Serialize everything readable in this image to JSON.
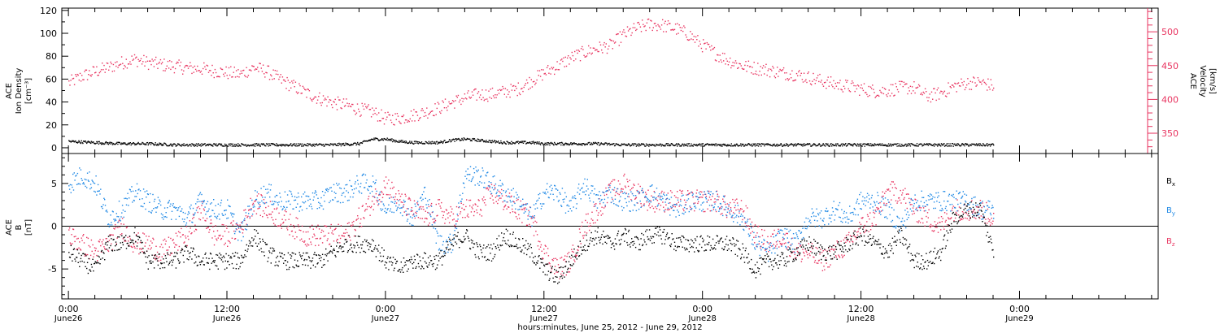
{
  "colors": {
    "axis": "#000000",
    "velocity": "#e8335f",
    "density": "#000000",
    "bx": "#000000",
    "by": "#1e88e5",
    "bz": "#e8335f"
  },
  "x_axis": {
    "title": "hours:minutes, June 25, 2012 - June 29, 2012",
    "range_hours": [
      -0.5,
      82.5
    ],
    "major_ticks": [
      {
        "hours": 0,
        "time": "0:00",
        "date": "June26"
      },
      {
        "hours": 12,
        "time": "12:00",
        "date": "June26"
      },
      {
        "hours": 24,
        "time": "0:00",
        "date": "June27"
      },
      {
        "hours": 36,
        "time": "12:00",
        "date": "June27"
      },
      {
        "hours": 48,
        "time": "0:00",
        "date": "June28"
      },
      {
        "hours": 60,
        "time": "12:00",
        "date": "June28"
      },
      {
        "hours": 72,
        "time": "0:00",
        "date": "June29"
      }
    ],
    "minor_tick_step_hours": 2
  },
  "chart_data": [
    {
      "type": "scatter",
      "panel": "plasma",
      "left_axis": {
        "label_lines": [
          "ACE",
          "Ion Density",
          "[cm⁻³]"
        ],
        "ylim": [
          -5,
          122
        ],
        "ticks": [
          0,
          20,
          40,
          60,
          80,
          100,
          120
        ]
      },
      "right_axis": {
        "label_lines": [
          "ACE",
          "Velocity",
          "[km/s]"
        ],
        "ylim": [
          320,
          535
        ],
        "ticks": [
          350,
          400,
          450,
          500
        ]
      },
      "series": [
        {
          "axis": "right",
          "color_key": "velocity",
          "points_hours": [
            0,
            1,
            2,
            3,
            4,
            5,
            6,
            7,
            8,
            9,
            10,
            11,
            12,
            13,
            14,
            15,
            16,
            17,
            18,
            19,
            20,
            21,
            22,
            23,
            24,
            25,
            26,
            27,
            28,
            29,
            30,
            31,
            32,
            33,
            34,
            35,
            36,
            37,
            38,
            39,
            40,
            41,
            42,
            43,
            44,
            45,
            46,
            47,
            48,
            49,
            50,
            51,
            52,
            53,
            54,
            55,
            56,
            57,
            58,
            59,
            60,
            61,
            62,
            63,
            64,
            65,
            66,
            67,
            68,
            69,
            70
          ],
          "values": [
            425,
            435,
            442,
            448,
            455,
            460,
            455,
            452,
            450,
            447,
            446,
            443,
            440,
            438,
            448,
            442,
            430,
            420,
            410,
            402,
            396,
            392,
            386,
            382,
            372,
            373,
            377,
            382,
            388,
            396,
            403,
            408,
            408,
            412,
            416,
            428,
            440,
            450,
            462,
            470,
            476,
            480,
            496,
            506,
            512,
            510,
            505,
            496,
            480,
            468,
            458,
            450,
            447,
            444,
            440,
            438,
            433,
            428,
            423,
            420,
            416,
            413,
            414,
            418,
            418,
            405,
            410,
            420,
            425,
            426,
            420
          ],
          "spread": 10
        },
        {
          "axis": "left",
          "color_key": "density",
          "points_hours": [
            0,
            2,
            4,
            6,
            8,
            10,
            12,
            14,
            16,
            18,
            20,
            22,
            23,
            24,
            25,
            26,
            27,
            28,
            29,
            30,
            31,
            32,
            33,
            34,
            35,
            36,
            38,
            40,
            42,
            44,
            46,
            48,
            50,
            52,
            54,
            56,
            58,
            60,
            62,
            64,
            66,
            68,
            70
          ],
          "values": [
            6,
            5,
            4,
            4,
            3,
            3,
            3,
            3,
            3,
            3,
            3,
            4,
            8,
            8,
            6,
            5,
            5,
            5,
            7,
            8,
            7,
            6,
            5,
            5,
            5,
            4,
            4,
            4,
            3,
            3,
            3,
            3,
            3,
            3,
            3,
            3,
            3,
            3,
            3,
            3,
            3,
            3,
            3
          ],
          "spread": 1.2
        }
      ]
    },
    {
      "type": "scatter",
      "panel": "magnetic_field",
      "left_axis": {
        "label_lines": [
          "ACE",
          "B",
          "[nT]"
        ],
        "ylim": [
          -8.5,
          8.5
        ],
        "ticks": [
          -5,
          0,
          5
        ]
      },
      "legend": {
        "placement": "right",
        "labels": [
          "Bx",
          "By",
          "Bz"
        ]
      },
      "series": [
        {
          "name": "Bx",
          "color_key": "bx",
          "points_hours": [
            0,
            1,
            2,
            3,
            4,
            5,
            6,
            7,
            8,
            9,
            10,
            11,
            12,
            13,
            14,
            15,
            16,
            17,
            18,
            19,
            20,
            21,
            22,
            23,
            24,
            25,
            26,
            27,
            28,
            29,
            30,
            31,
            32,
            33,
            34,
            35,
            36,
            37,
            38,
            39,
            40,
            41,
            42,
            43,
            44,
            45,
            46,
            47,
            48,
            49,
            50,
            51,
            52,
            53,
            54,
            55,
            56,
            57,
            58,
            59,
            60,
            61,
            62,
            63,
            64,
            65,
            66,
            67,
            68,
            69,
            70
          ],
          "values": [
            -3,
            -4,
            -5,
            -2,
            -2,
            -1,
            -4,
            -4,
            -4,
            -3,
            -4,
            -4,
            -4,
            -4,
            -1,
            -3,
            -4,
            -4,
            -4,
            -4,
            -3,
            -2,
            -2,
            -2,
            -4,
            -5,
            -4,
            -4,
            -4,
            -2,
            -1,
            -3,
            -3,
            -1,
            -2,
            -3,
            -5,
            -6,
            -4,
            -2,
            -1,
            -2,
            -1,
            -2,
            -1,
            -1,
            -2,
            -2,
            -2,
            -2,
            -2,
            -3,
            -5,
            -4,
            -4,
            -3,
            -2,
            -3,
            -3,
            -2,
            -1,
            -2,
            -3,
            -1,
            -4,
            -4,
            -3,
            1,
            2,
            2,
            -3
          ],
          "spread": 1.0
        },
        {
          "name": "By",
          "color_key": "by",
          "points_hours": [
            0,
            1,
            2,
            3,
            4,
            5,
            6,
            7,
            8,
            9,
            10,
            11,
            12,
            13,
            14,
            15,
            16,
            17,
            18,
            19,
            20,
            21,
            22,
            23,
            24,
            25,
            26,
            27,
            28,
            29,
            30,
            31,
            32,
            33,
            34,
            35,
            36,
            37,
            38,
            39,
            40,
            41,
            42,
            43,
            44,
            45,
            46,
            47,
            48,
            49,
            50,
            51,
            52,
            53,
            54,
            55,
            56,
            57,
            58,
            59,
            60,
            61,
            62,
            63,
            64,
            65,
            66,
            67,
            68,
            69,
            70
          ],
          "values": [
            5,
            6,
            5,
            1,
            2,
            4,
            3,
            2,
            2,
            1,
            3,
            2,
            2,
            -1,
            3,
            4,
            3,
            3,
            3,
            3,
            4,
            4,
            5,
            5,
            2,
            3,
            1,
            4,
            -2,
            -2,
            6,
            6,
            5,
            4,
            3,
            1,
            4,
            4,
            2,
            5,
            3,
            4,
            3,
            3,
            4,
            3,
            2,
            3,
            3,
            3,
            2,
            1,
            -2,
            -3,
            -1,
            -2,
            1,
            1,
            2,
            1,
            3,
            3,
            2,
            0,
            3,
            3,
            3,
            3,
            3,
            2,
            2
          ],
          "spread": 1.2
        },
        {
          "name": "Bz",
          "color_key": "bz",
          "points_hours": [
            0,
            1,
            2,
            3,
            4,
            5,
            6,
            7,
            8,
            9,
            10,
            11,
            12,
            13,
            14,
            15,
            16,
            17,
            18,
            19,
            20,
            21,
            22,
            23,
            24,
            25,
            26,
            27,
            28,
            29,
            30,
            31,
            32,
            33,
            34,
            35,
            36,
            37,
            38,
            39,
            40,
            41,
            42,
            43,
            44,
            45,
            46,
            47,
            48,
            49,
            50,
            51,
            52,
            53,
            54,
            55,
            56,
            57,
            58,
            59,
            60,
            61,
            62,
            63,
            64,
            65,
            66,
            67,
            68,
            69,
            70
          ],
          "values": [
            -1,
            -2,
            -3,
            -2,
            0,
            -2,
            -2,
            -3,
            -2,
            -1,
            2,
            -1,
            -1,
            0,
            3,
            2,
            1,
            0,
            -1,
            -1,
            -1,
            -1,
            1,
            3,
            5,
            3,
            2,
            1,
            2,
            1,
            2,
            2,
            4,
            3,
            2,
            1,
            -3,
            -5,
            -4,
            0,
            2,
            4,
            5,
            4,
            3,
            3,
            3,
            3,
            3,
            3,
            2,
            2,
            -1,
            -2,
            -1,
            -3,
            -3,
            -4,
            -3,
            -2,
            0,
            1,
            4,
            4,
            2,
            1,
            0,
            2,
            2,
            2,
            1
          ],
          "spread": 1.3
        }
      ]
    }
  ]
}
